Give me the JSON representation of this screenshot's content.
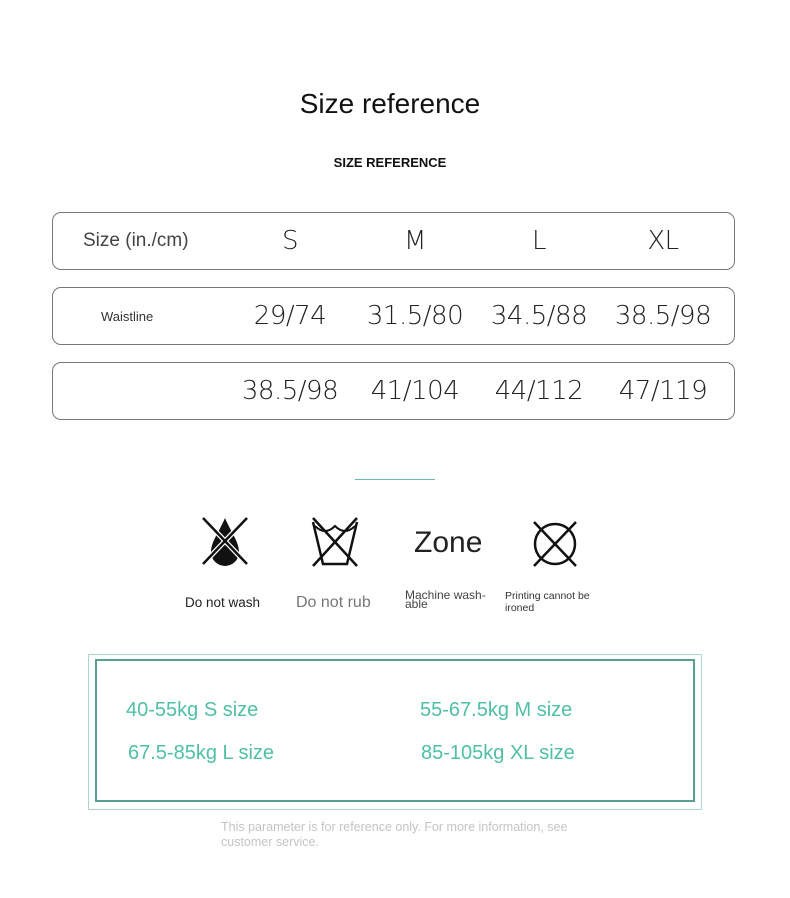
{
  "title": "Size reference",
  "subtitle": "SIZE REFERENCE",
  "table": {
    "header": {
      "label": "Size (in./cm)",
      "cells": [
        "S",
        "M",
        "L",
        "XL"
      ]
    },
    "rows": [
      {
        "label": "Waistline",
        "cells": [
          "29/74",
          "31.5/80",
          "34.5/88",
          "38.5/98"
        ]
      },
      {
        "label": "",
        "cells": [
          "38.5/98",
          "41/104",
          "44/112",
          "47/119"
        ]
      }
    ]
  },
  "care": [
    {
      "icon": "do-not-wash-icon",
      "label": "Do not wash"
    },
    {
      "icon": "do-not-rub-icon",
      "label": "Do not rub"
    },
    {
      "icon": "zone-text",
      "icon_text": "Zone",
      "label": "Machine wash-able"
    },
    {
      "icon": "do-not-iron-icon",
      "label": "Printing cannot be ironed"
    }
  ],
  "weights": [
    "40-55kg S size",
    "55-67.5kg M size",
    "67.5-85kg L size",
    "85-105kg XL size"
  ],
  "note": "This parameter is for reference only. For more information, see customer service.",
  "colors": {
    "accent": "#4fbfa6",
    "border": "#5a9e94"
  }
}
